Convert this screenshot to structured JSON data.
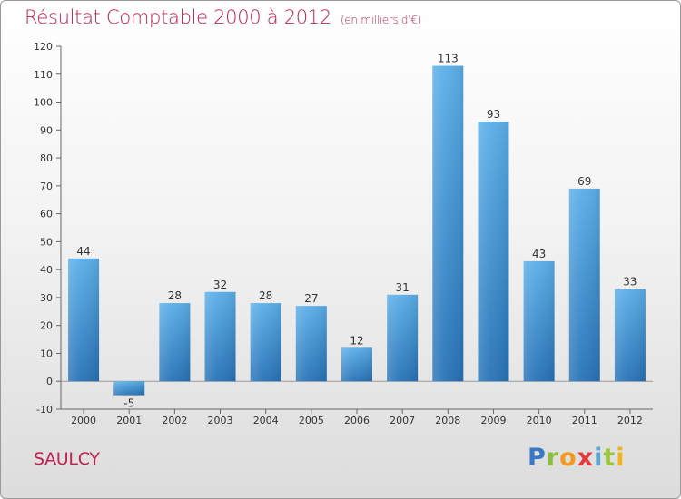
{
  "header": {
    "title": "Résultat Comptable 2000 à 2012",
    "subtitle": "(en milliers d'€)"
  },
  "footer": {
    "place": "SAULCY",
    "logo_parts": [
      "P",
      "r",
      "o",
      "x",
      "i",
      "t",
      "i"
    ]
  },
  "colors": {
    "accent": "#c0224e",
    "bar": "#3b93d8",
    "bar_dark": "#2b77bd"
  },
  "chart_data": {
    "type": "bar",
    "title": "Résultat Comptable 2000 à 2012",
    "subtitle": "(en milliers d'€)",
    "categories": [
      "2000",
      "2001",
      "2002",
      "2003",
      "2004",
      "2005",
      "2006",
      "2007",
      "2008",
      "2009",
      "2010",
      "2011",
      "2012"
    ],
    "values": [
      44,
      -5,
      28,
      32,
      28,
      27,
      12,
      31,
      113,
      93,
      43,
      69,
      33
    ],
    "data_labels": [
      "44",
      "-5",
      "28",
      "32",
      "28",
      "27",
      "12",
      "31",
      "113",
      "93",
      "43",
      "69",
      "33"
    ],
    "yticks": [
      -10,
      0,
      10,
      20,
      30,
      40,
      50,
      60,
      70,
      80,
      90,
      100,
      110,
      120
    ],
    "ylim": [
      -10,
      120
    ],
    "xlabel": "",
    "ylabel": "",
    "grid": false
  }
}
